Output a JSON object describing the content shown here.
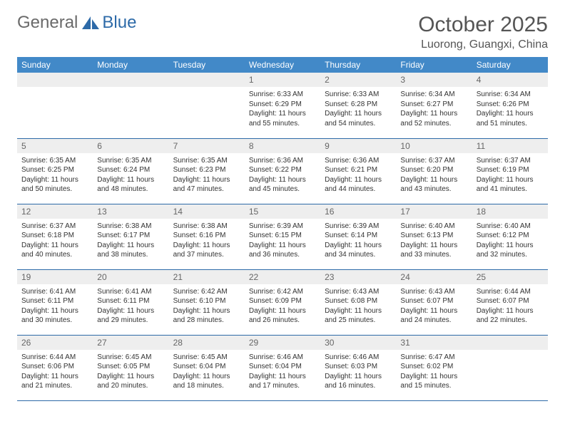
{
  "logo": {
    "general": "General",
    "blue": "Blue"
  },
  "title": "October 2025",
  "location": "Luorong, Guangxi, China",
  "colors": {
    "header_bg": "#4289c8",
    "header_text": "#ffffff",
    "rule": "#2d6aa8",
    "daynum_bg": "#eeeeee",
    "body_text": "#333333",
    "title_text": "#555555"
  },
  "day_headers": [
    "Sunday",
    "Monday",
    "Tuesday",
    "Wednesday",
    "Thursday",
    "Friday",
    "Saturday"
  ],
  "weeks": [
    [
      {
        "n": "",
        "sr": "",
        "ss": "",
        "dl": ""
      },
      {
        "n": "",
        "sr": "",
        "ss": "",
        "dl": ""
      },
      {
        "n": "",
        "sr": "",
        "ss": "",
        "dl": ""
      },
      {
        "n": "1",
        "sr": "6:33 AM",
        "ss": "6:29 PM",
        "dl": "11 hours and 55 minutes."
      },
      {
        "n": "2",
        "sr": "6:33 AM",
        "ss": "6:28 PM",
        "dl": "11 hours and 54 minutes."
      },
      {
        "n": "3",
        "sr": "6:34 AM",
        "ss": "6:27 PM",
        "dl": "11 hours and 52 minutes."
      },
      {
        "n": "4",
        "sr": "6:34 AM",
        "ss": "6:26 PM",
        "dl": "11 hours and 51 minutes."
      }
    ],
    [
      {
        "n": "5",
        "sr": "6:35 AM",
        "ss": "6:25 PM",
        "dl": "11 hours and 50 minutes."
      },
      {
        "n": "6",
        "sr": "6:35 AM",
        "ss": "6:24 PM",
        "dl": "11 hours and 48 minutes."
      },
      {
        "n": "7",
        "sr": "6:35 AM",
        "ss": "6:23 PM",
        "dl": "11 hours and 47 minutes."
      },
      {
        "n": "8",
        "sr": "6:36 AM",
        "ss": "6:22 PM",
        "dl": "11 hours and 45 minutes."
      },
      {
        "n": "9",
        "sr": "6:36 AM",
        "ss": "6:21 PM",
        "dl": "11 hours and 44 minutes."
      },
      {
        "n": "10",
        "sr": "6:37 AM",
        "ss": "6:20 PM",
        "dl": "11 hours and 43 minutes."
      },
      {
        "n": "11",
        "sr": "6:37 AM",
        "ss": "6:19 PM",
        "dl": "11 hours and 41 minutes."
      }
    ],
    [
      {
        "n": "12",
        "sr": "6:37 AM",
        "ss": "6:18 PM",
        "dl": "11 hours and 40 minutes."
      },
      {
        "n": "13",
        "sr": "6:38 AM",
        "ss": "6:17 PM",
        "dl": "11 hours and 38 minutes."
      },
      {
        "n": "14",
        "sr": "6:38 AM",
        "ss": "6:16 PM",
        "dl": "11 hours and 37 minutes."
      },
      {
        "n": "15",
        "sr": "6:39 AM",
        "ss": "6:15 PM",
        "dl": "11 hours and 36 minutes."
      },
      {
        "n": "16",
        "sr": "6:39 AM",
        "ss": "6:14 PM",
        "dl": "11 hours and 34 minutes."
      },
      {
        "n": "17",
        "sr": "6:40 AM",
        "ss": "6:13 PM",
        "dl": "11 hours and 33 minutes."
      },
      {
        "n": "18",
        "sr": "6:40 AM",
        "ss": "6:12 PM",
        "dl": "11 hours and 32 minutes."
      }
    ],
    [
      {
        "n": "19",
        "sr": "6:41 AM",
        "ss": "6:11 PM",
        "dl": "11 hours and 30 minutes."
      },
      {
        "n": "20",
        "sr": "6:41 AM",
        "ss": "6:11 PM",
        "dl": "11 hours and 29 minutes."
      },
      {
        "n": "21",
        "sr": "6:42 AM",
        "ss": "6:10 PM",
        "dl": "11 hours and 28 minutes."
      },
      {
        "n": "22",
        "sr": "6:42 AM",
        "ss": "6:09 PM",
        "dl": "11 hours and 26 minutes."
      },
      {
        "n": "23",
        "sr": "6:43 AM",
        "ss": "6:08 PM",
        "dl": "11 hours and 25 minutes."
      },
      {
        "n": "24",
        "sr": "6:43 AM",
        "ss": "6:07 PM",
        "dl": "11 hours and 24 minutes."
      },
      {
        "n": "25",
        "sr": "6:44 AM",
        "ss": "6:07 PM",
        "dl": "11 hours and 22 minutes."
      }
    ],
    [
      {
        "n": "26",
        "sr": "6:44 AM",
        "ss": "6:06 PM",
        "dl": "11 hours and 21 minutes."
      },
      {
        "n": "27",
        "sr": "6:45 AM",
        "ss": "6:05 PM",
        "dl": "11 hours and 20 minutes."
      },
      {
        "n": "28",
        "sr": "6:45 AM",
        "ss": "6:04 PM",
        "dl": "11 hours and 18 minutes."
      },
      {
        "n": "29",
        "sr": "6:46 AM",
        "ss": "6:04 PM",
        "dl": "11 hours and 17 minutes."
      },
      {
        "n": "30",
        "sr": "6:46 AM",
        "ss": "6:03 PM",
        "dl": "11 hours and 16 minutes."
      },
      {
        "n": "31",
        "sr": "6:47 AM",
        "ss": "6:02 PM",
        "dl": "11 hours and 15 minutes."
      },
      {
        "n": "",
        "sr": "",
        "ss": "",
        "dl": ""
      }
    ]
  ],
  "labels": {
    "sunrise": "Sunrise:",
    "sunset": "Sunset:",
    "daylight": "Daylight:"
  }
}
